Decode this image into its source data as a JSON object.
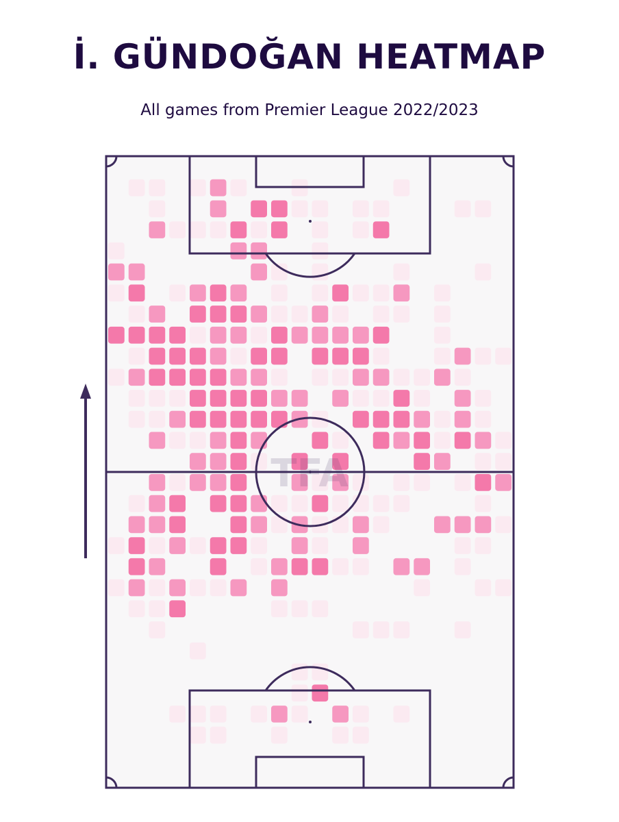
{
  "chart_data": {
    "type": "heatmap",
    "title": "İ. GÜNDOĞAN HEATMAP",
    "subtitle": "All games from Premier League 2022/2023",
    "watermark": "TFA",
    "colors": [
      "#f8f7f8",
      "#fbeaf1",
      "#f8c3d9",
      "#f698c0",
      "#f479aa"
    ],
    "values": [
      [
        0,
        0,
        0,
        0,
        0,
        0,
        0,
        0,
        0,
        0,
        0,
        0,
        0,
        0,
        0,
        0,
        0,
        0,
        0,
        0
      ],
      [
        0,
        1,
        1,
        0,
        1,
        3,
        1,
        0,
        0,
        1,
        0,
        0,
        0,
        0,
        1,
        0,
        0,
        0,
        0,
        0
      ],
      [
        0,
        0,
        1,
        0,
        0,
        3,
        0,
        4,
        4,
        1,
        1,
        0,
        1,
        1,
        0,
        0,
        0,
        1,
        1,
        0
      ],
      [
        0,
        0,
        3,
        1,
        1,
        1,
        4,
        1,
        4,
        0,
        1,
        0,
        1,
        4,
        0,
        0,
        0,
        0,
        0,
        0
      ],
      [
        1,
        0,
        0,
        0,
        0,
        0,
        3,
        3,
        0,
        0,
        1,
        0,
        0,
        0,
        0,
        0,
        0,
        0,
        0,
        0
      ],
      [
        3,
        3,
        0,
        0,
        0,
        0,
        0,
        3,
        1,
        0,
        1,
        0,
        0,
        0,
        1,
        0,
        0,
        0,
        1,
        0
      ],
      [
        1,
        4,
        0,
        1,
        3,
        4,
        3,
        0,
        1,
        0,
        1,
        4,
        1,
        1,
        3,
        0,
        1,
        0,
        0,
        0
      ],
      [
        0,
        1,
        3,
        0,
        4,
        4,
        4,
        3,
        1,
        1,
        3,
        1,
        0,
        1,
        1,
        0,
        1,
        0,
        0,
        0
      ],
      [
        4,
        4,
        4,
        4,
        1,
        3,
        3,
        1,
        4,
        3,
        3,
        3,
        3,
        4,
        0,
        0,
        1,
        0,
        0,
        0
      ],
      [
        0,
        1,
        4,
        4,
        4,
        3,
        1,
        4,
        4,
        0,
        4,
        4,
        4,
        1,
        0,
        0,
        1,
        3,
        1,
        1
      ],
      [
        1,
        3,
        4,
        4,
        4,
        4,
        3,
        3,
        1,
        0,
        1,
        1,
        3,
        3,
        1,
        1,
        3,
        1,
        0,
        0
      ],
      [
        0,
        1,
        1,
        1,
        4,
        4,
        4,
        4,
        3,
        3,
        0,
        3,
        1,
        1,
        4,
        1,
        0,
        3,
        1,
        0
      ],
      [
        0,
        1,
        1,
        3,
        4,
        4,
        4,
        4,
        4,
        3,
        1,
        0,
        4,
        4,
        4,
        3,
        1,
        3,
        1,
        0
      ],
      [
        0,
        0,
        3,
        1,
        1,
        3,
        4,
        3,
        0,
        0,
        4,
        1,
        0,
        4,
        3,
        4,
        1,
        4,
        3,
        1
      ],
      [
        0,
        0,
        0,
        0,
        3,
        3,
        4,
        1,
        0,
        4,
        0,
        4,
        0,
        0,
        0,
        4,
        3,
        0,
        1,
        1
      ],
      [
        0,
        0,
        3,
        1,
        3,
        3,
        4,
        0,
        0,
        3,
        1,
        3,
        1,
        0,
        1,
        1,
        0,
        1,
        4,
        3
      ],
      [
        0,
        1,
        3,
        4,
        0,
        4,
        4,
        3,
        1,
        1,
        4,
        1,
        1,
        1,
        1,
        0,
        0,
        0,
        1,
        0
      ],
      [
        0,
        3,
        3,
        4,
        0,
        0,
        4,
        3,
        1,
        3,
        1,
        1,
        3,
        1,
        0,
        0,
        3,
        3,
        3,
        1
      ],
      [
        1,
        4,
        1,
        3,
        1,
        4,
        4,
        1,
        0,
        3,
        1,
        0,
        3,
        0,
        0,
        0,
        0,
        1,
        1,
        0
      ],
      [
        0,
        4,
        3,
        0,
        0,
        4,
        0,
        1,
        3,
        4,
        4,
        1,
        1,
        0,
        3,
        3,
        0,
        1,
        0,
        0
      ],
      [
        1,
        3,
        1,
        3,
        1,
        1,
        3,
        0,
        3,
        0,
        0,
        0,
        0,
        0,
        0,
        1,
        0,
        0,
        1,
        1
      ],
      [
        0,
        1,
        1,
        4,
        0,
        0,
        0,
        0,
        1,
        1,
        1,
        0,
        0,
        0,
        0,
        0,
        0,
        0,
        0,
        0
      ],
      [
        0,
        0,
        1,
        0,
        0,
        0,
        0,
        0,
        0,
        0,
        0,
        0,
        1,
        1,
        1,
        0,
        0,
        1,
        0,
        0
      ],
      [
        0,
        0,
        0,
        0,
        1,
        0,
        0,
        0,
        0,
        0,
        0,
        0,
        0,
        0,
        0,
        0,
        0,
        0,
        0,
        0
      ],
      [
        0,
        0,
        0,
        0,
        0,
        0,
        0,
        0,
        0,
        1,
        1,
        0,
        0,
        0,
        0,
        0,
        0,
        0,
        0,
        0
      ],
      [
        0,
        0,
        0,
        0,
        0,
        0,
        0,
        0,
        0,
        1,
        4,
        0,
        0,
        0,
        0,
        0,
        0,
        0,
        0,
        0
      ],
      [
        0,
        0,
        0,
        1,
        1,
        1,
        0,
        1,
        3,
        1,
        0,
        3,
        1,
        0,
        1,
        0,
        0,
        0,
        0,
        0
      ],
      [
        0,
        0,
        0,
        0,
        1,
        1,
        0,
        0,
        1,
        0,
        0,
        1,
        1,
        0,
        0,
        0,
        0,
        0,
        0,
        0
      ],
      [
        0,
        0,
        0,
        0,
        0,
        0,
        0,
        0,
        0,
        0,
        0,
        0,
        0,
        0,
        0,
        0,
        0,
        0,
        0,
        0
      ],
      [
        0,
        0,
        0,
        0,
        0,
        0,
        0,
        0,
        0,
        0,
        0,
        0,
        0,
        0,
        0,
        0,
        0,
        0,
        0,
        0
      ]
    ]
  }
}
